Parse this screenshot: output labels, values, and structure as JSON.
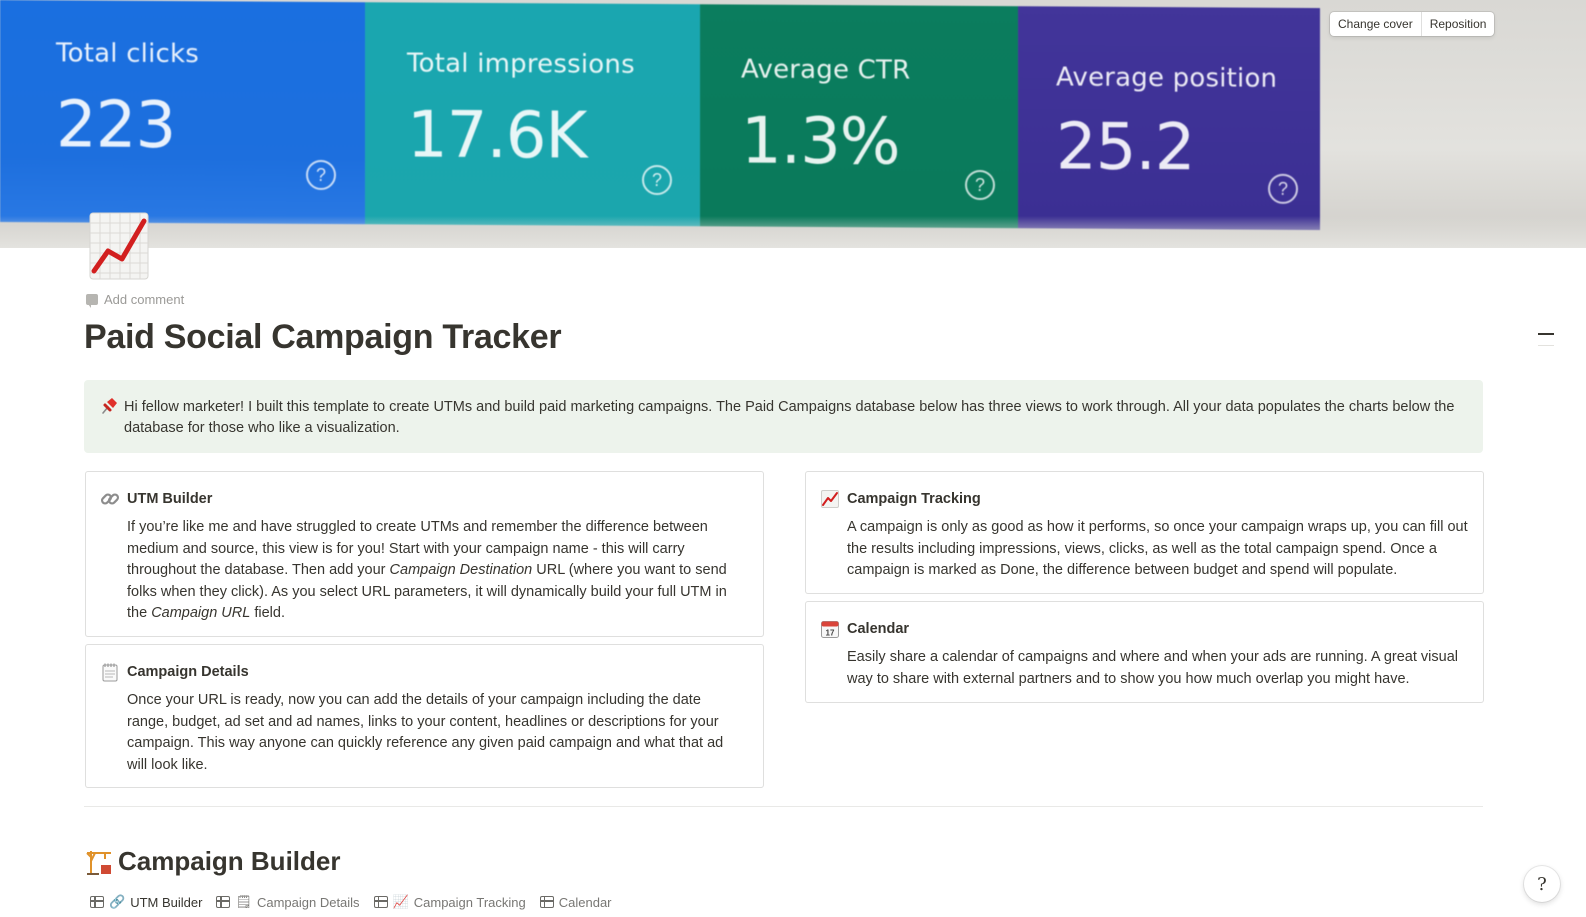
{
  "cover": {
    "panels": [
      {
        "label": "Total clicks",
        "value": "223",
        "help": "?",
        "color": "#1d6fde"
      },
      {
        "label": "Total impressions",
        "value": "17.6K",
        "help": "?",
        "color": "#1ba6ad"
      },
      {
        "label": "Average CTR",
        "value": "1.3%",
        "help": "?",
        "color": "#0a7a5b"
      },
      {
        "label": "Average position",
        "value": "25.2",
        "help": "?",
        "color": "#3b2f93"
      }
    ],
    "buttons": {
      "change_cover": "Change cover",
      "reposition": "Reposition"
    }
  },
  "page": {
    "icon": "chart-increasing-icon",
    "add_comment": "Add comment",
    "title": "Paid Social Campaign Tracker"
  },
  "callout": {
    "icon": "pushpin-icon",
    "text": "Hi fellow marketer! I built this template to create UTMs and build paid marketing campaigns. The Paid Campaigns database below has three views to work through. All your data populates the charts below the database for those who like a visualization.",
    "background": "#edf3ec"
  },
  "cards": {
    "utm_builder": {
      "icon": "link-icon",
      "title": "UTM Builder",
      "body_1": "If you’re like me and have struggled to create UTMs and remember the difference between medium and source, this view is for you! Start with your campaign name - this will carry throughout the database. Then add your ",
      "body_em_1": "Campaign Destination",
      "body_2": " URL (where you want to send folks when they click). As you select URL parameters, it will dynamically build your full UTM in the ",
      "body_em_2": "Campaign URL",
      "body_3": " field."
    },
    "campaign_details": {
      "icon": "spiral-notepad-icon",
      "title": "Campaign Details",
      "body": "Once your URL is ready, now you can add the details of your campaign including the date range, budget, ad set and ad names, links to your content, headlines or descriptions for your campaign. This way anyone can quickly reference any given paid campaign and what that ad will look like."
    },
    "campaign_tracking": {
      "icon": "chart-increasing-icon",
      "title": "Campaign Tracking",
      "body": "A campaign is only as good as how it performs, so once your campaign wraps up, you can fill out the results including impressions, views, clicks, as well as the total campaign spend. Once a campaign is marked as Done, the difference between budget and spend will populate."
    },
    "calendar": {
      "icon": "calendar-icon",
      "title": "Calendar",
      "calendar_day": "17",
      "body": "Easily share a calendar of campaigns and where and when your ads are running. A great visual way to share with external partners and to show you how much overlap you might have."
    }
  },
  "section": {
    "icon": "building-construction-icon",
    "title": "Campaign Builder",
    "tabs": [
      {
        "label": "UTM Builder",
        "emoji": "🔗",
        "active": true
      },
      {
        "label": "Campaign Details",
        "emoji": "🗒",
        "active": false
      },
      {
        "label": "Campaign Tracking",
        "emoji": "📈",
        "active": false
      },
      {
        "label": "Calendar",
        "emoji": "",
        "active": false
      }
    ]
  },
  "help": {
    "label": "?"
  }
}
